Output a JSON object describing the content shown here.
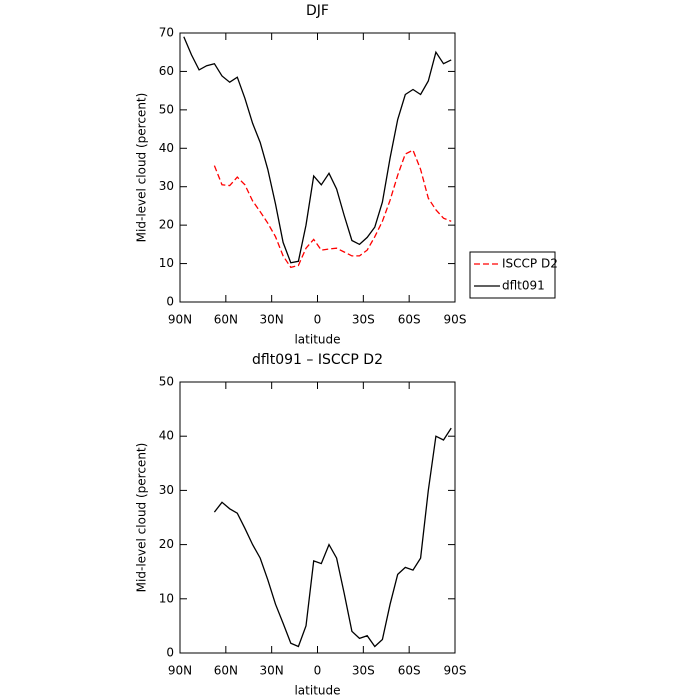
{
  "chart_data": [
    {
      "type": "line",
      "title": "DJF",
      "xlabel": "latitude",
      "ylabel": "Mid-level cloud (percent)",
      "x": [
        87.5,
        82.5,
        77.5,
        72.5,
        67.5,
        62.5,
        57.5,
        52.5,
        47.5,
        42.5,
        37.5,
        32.5,
        27.5,
        22.5,
        17.5,
        12.5,
        7.5,
        2.5,
        -2.5,
        -7.5,
        -12.5,
        -17.5,
        -22.5,
        -27.5,
        -32.5,
        -37.5,
        -42.5,
        -47.5,
        -52.5,
        -57.5,
        -62.5,
        -67.5,
        -72.5,
        -77.5,
        -82.5,
        -87.5
      ],
      "series": [
        {
          "name": "ISCCP D2",
          "color": "#ff0000",
          "style": "dashed",
          "values": [
            null,
            null,
            null,
            null,
            35.5,
            30.5,
            30.3,
            32.5,
            30.5,
            26.3,
            23.5,
            20.5,
            17,
            12,
            9,
            9.5,
            14,
            16.3,
            13.5,
            13.8,
            14,
            13,
            12,
            12,
            13.5,
            17,
            21,
            26.5,
            33,
            38.5,
            39.5,
            34.5,
            27,
            24,
            21.8,
            21
          ]
        },
        {
          "name": "dflt091",
          "color": "#000000",
          "style": "solid",
          "values": [
            69,
            64.3,
            60.4,
            61.5,
            62,
            58.8,
            57.2,
            58.5,
            53,
            46.5,
            41.5,
            34.5,
            25.5,
            15.5,
            10.2,
            10.6,
            20,
            32.8,
            30.5,
            33.5,
            29.4,
            22.5,
            16,
            15,
            16.8,
            19.5,
            26,
            37.5,
            47.5,
            54,
            55.3,
            54,
            57.5,
            65,
            62,
            63
          ]
        }
      ],
      "xlim": [
        90,
        -90
      ],
      "xticks": [
        {
          "value": 90,
          "label": "90N"
        },
        {
          "value": 60,
          "label": "60N"
        },
        {
          "value": 30,
          "label": "30N"
        },
        0,
        {
          "value": -30,
          "label": "30S"
        },
        {
          "value": -60,
          "label": "60S"
        },
        {
          "value": -90,
          "label": "90S"
        }
      ],
      "ylim": [
        0,
        70
      ],
      "yticks": [
        0,
        10,
        20,
        30,
        40,
        50,
        60,
        70
      ],
      "legend": "right"
    },
    {
      "type": "line",
      "title": "dflt091 – ISCCP D2",
      "xlabel": "latitude",
      "ylabel": "Mid-level cloud (percent)",
      "x": [
        87.5,
        82.5,
        77.5,
        72.5,
        67.5,
        62.5,
        57.5,
        52.5,
        47.5,
        42.5,
        37.5,
        32.5,
        27.5,
        22.5,
        17.5,
        12.5,
        7.5,
        2.5,
        -2.5,
        -7.5,
        -12.5,
        -17.5,
        -22.5,
        -27.5,
        -32.5,
        -37.5,
        -42.5,
        -47.5,
        -52.5,
        -57.5,
        -62.5,
        -67.5,
        -72.5,
        -77.5,
        -82.5,
        -87.5
      ],
      "series": [
        {
          "color": "#000000",
          "style": "solid",
          "values": [
            null,
            null,
            null,
            null,
            26,
            27.8,
            26.6,
            25.8,
            23,
            20,
            17.5,
            13.5,
            9,
            5.5,
            1.8,
            1.2,
            5,
            17,
            16.5,
            20,
            17.5,
            11,
            4,
            2.7,
            3.2,
            1.2,
            2.5,
            9,
            14.5,
            15.8,
            15.3,
            17.5,
            30,
            40,
            39.3,
            41.5
          ]
        }
      ],
      "xlim": [
        90,
        -90
      ],
      "xticks": [
        {
          "value": 90,
          "label": "90N"
        },
        {
          "value": 60,
          "label": "60N"
        },
        {
          "value": 30,
          "label": "30N"
        },
        0,
        {
          "value": -30,
          "label": "30S"
        },
        {
          "value": -60,
          "label": "60S"
        },
        {
          "value": -90,
          "label": "90S"
        }
      ],
      "ylim": [
        0,
        50
      ],
      "yticks": [
        0,
        10,
        20,
        30,
        40,
        50
      ]
    }
  ]
}
